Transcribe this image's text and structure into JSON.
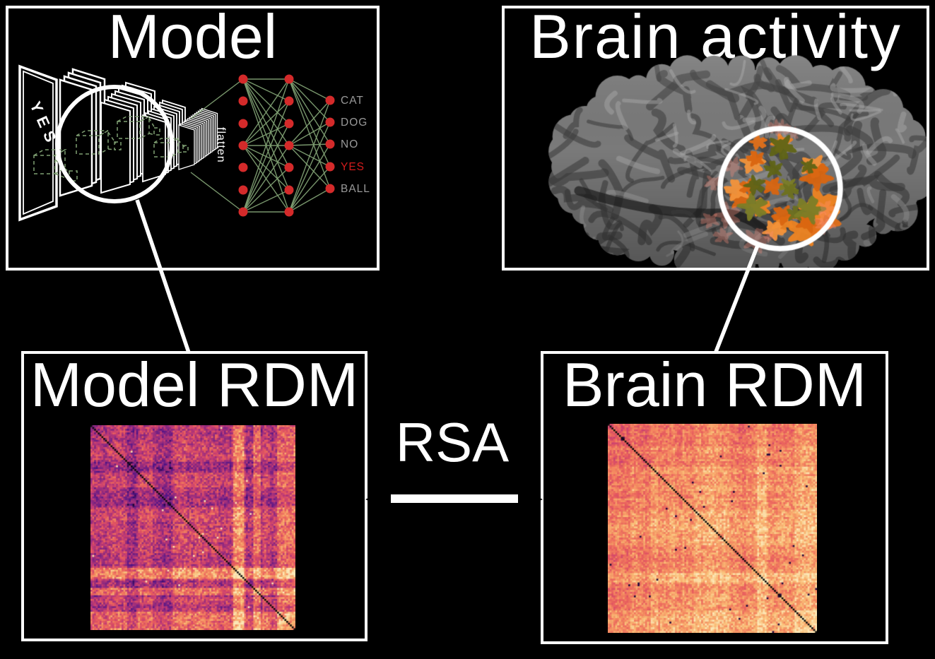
{
  "palette": {
    "background": "#000000",
    "panel_border": "#ffffff",
    "title_text": "#ffffff",
    "nn_line_green": "#7f9f72",
    "nn_node_red": "#d42a2a",
    "output_label_gray": "#999999",
    "output_label_red": "#d41c1c",
    "brain_gray": "#7a7a7a",
    "activation_orange": "#e87c1e",
    "activation_olive": "#6f7220"
  },
  "model_panel": {
    "title": "Model",
    "input_text": "YES",
    "flatten_label": "flatten",
    "output_labels": [
      {
        "text": "CAT",
        "color": "#999999"
      },
      {
        "text": "DOG",
        "color": "#999999"
      },
      {
        "text": "NO",
        "color": "#999999"
      },
      {
        "text": "YES",
        "color": "#d41c1c"
      },
      {
        "text": "BALL",
        "color": "#999999"
      }
    ]
  },
  "brain_panel": {
    "title": "Brain activity",
    "activation": {
      "orange_colors": [
        "#e1701a",
        "#ee8422",
        "#f2923a",
        "#d96510"
      ],
      "olive_colors": [
        "#6e7120",
        "#7b7d27",
        "#606416"
      ],
      "fringe_color": "#ff8f7d"
    }
  },
  "model_rdm_panel": {
    "title": "Model RDM"
  },
  "brain_rdm_panel": {
    "title": "Brain RDM"
  },
  "rsa": {
    "label": "RSA"
  },
  "heatmaps": {
    "description": "representational dissimilarity matrices, magma-style colormap, black diagonal",
    "palette_stops": [
      [
        0.0,
        "#140428"
      ],
      [
        0.14,
        "#511489"
      ],
      [
        0.3,
        "#8c2981"
      ],
      [
        0.46,
        "#c43c75"
      ],
      [
        0.6,
        "#e85b5f"
      ],
      [
        0.74,
        "#f58860"
      ],
      [
        0.87,
        "#fbbf77"
      ],
      [
        1.0,
        "#fdeec1"
      ]
    ],
    "model": {
      "seed": 42,
      "n": 112,
      "base_range": [
        0.2,
        0.6
      ],
      "noise": 0.36,
      "light_bands": [
        {
          "from": 0.7,
          "to": 0.755,
          "level": 1.02
        },
        {
          "from": 0.8,
          "to": 0.835,
          "level": 0.85
        },
        {
          "from": 0.915,
          "to": 1.0,
          "level": 0.82
        }
      ],
      "outliers": {
        "count": 12,
        "value": 0.97
      }
    },
    "brain": {
      "seed": 7,
      "n": 112,
      "base_range": [
        0.55,
        0.85
      ],
      "noise": 0.24,
      "light_bands": [
        {
          "from": 0.72,
          "to": 0.765,
          "level": 0.95
        },
        {
          "from": 0.9,
          "to": 1.0,
          "level": 0.9
        }
      ],
      "outliers": {
        "count": 22,
        "value": 0.03
      }
    }
  }
}
